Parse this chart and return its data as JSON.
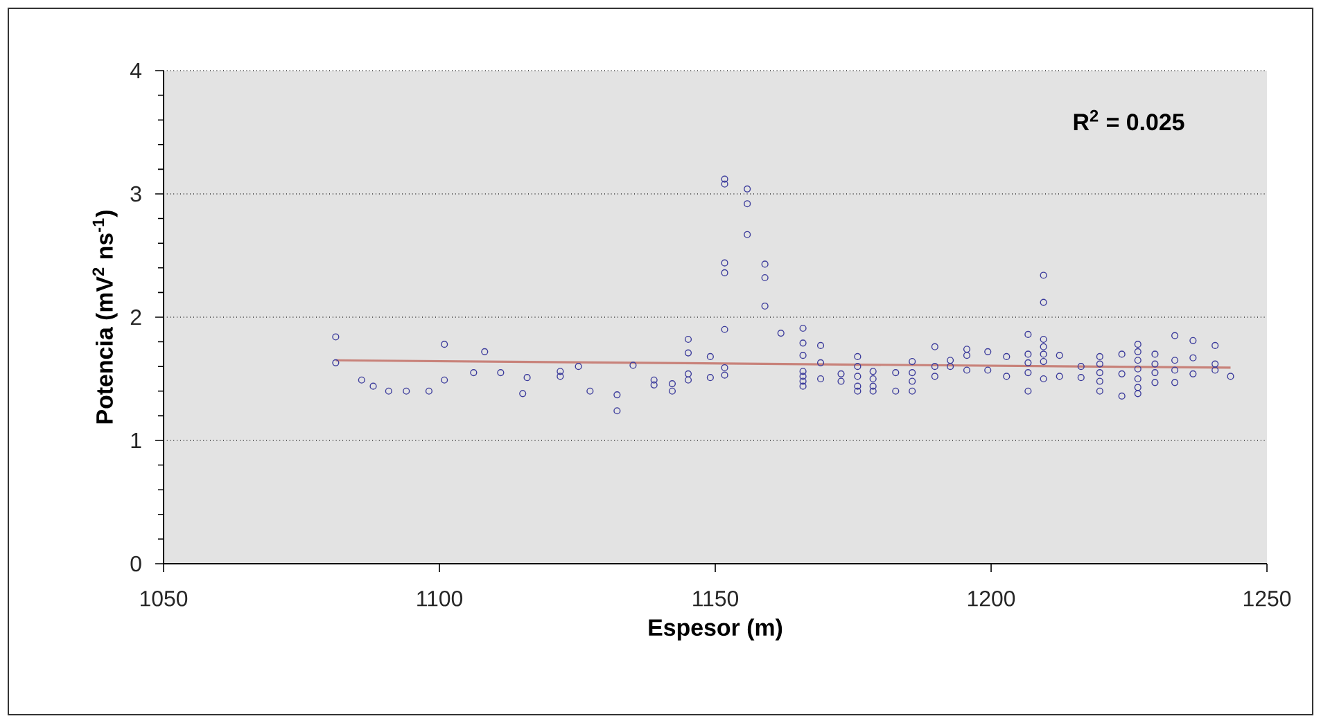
{
  "chart_data": {
    "type": "scatter",
    "xlabel": "Espesor (m)",
    "ylabel": "Potencia (mV$^{2}$ ns$^{-1}$)",
    "annotations": [
      "R$^{2}$ = 0.025"
    ],
    "xlim": [
      1050,
      1250
    ],
    "xticks": [
      1050,
      1100,
      1150,
      1200,
      1250
    ],
    "ylim": [
      0,
      4
    ],
    "yticks": [
      0,
      1,
      2,
      3,
      4
    ],
    "grid": "y",
    "series": [
      {
        "color": "#3c3c9c",
        "marker": "circle",
        "x": [
          1081.2,
          1081.2,
          1085.9,
          1088.0,
          1090.8,
          1094.0,
          1098.1,
          1100.9,
          1100.9,
          1106.2,
          1108.2,
          1111.1,
          1115.1,
          1115.9,
          1121.9,
          1121.9,
          1125.2,
          1127.3,
          1132.2,
          1132.2,
          1135.1,
          1138.9,
          1138.9,
          1142.2,
          1142.2,
          1145.1,
          1145.1,
          1145.1,
          1145.1,
          1149.1,
          1149.1,
          1151.7,
          1151.7,
          1151.7,
          1151.7,
          1151.7,
          1151.7,
          1151.7,
          1155.8,
          1155.8,
          1155.8,
          1159.0,
          1159.0,
          1159.0,
          1161.9,
          1165.9,
          1165.9,
          1165.9,
          1165.9,
          1165.9,
          1165.9,
          1165.9,
          1169.1,
          1169.1,
          1169.1,
          1172.8,
          1172.8,
          1175.8,
          1175.8,
          1175.8,
          1175.8,
          1175.8,
          1178.6,
          1178.6,
          1178.6,
          1178.6,
          1182.7,
          1182.7,
          1185.7,
          1185.7,
          1185.7,
          1185.7,
          1189.8,
          1189.8,
          1189.8,
          1192.6,
          1192.6,
          1195.6,
          1195.6,
          1195.6,
          1199.4,
          1199.4,
          1202.8,
          1202.8,
          1206.7,
          1206.7,
          1206.7,
          1206.7,
          1206.7,
          1209.5,
          1209.5,
          1209.5,
          1209.5,
          1209.5,
          1209.5,
          1209.5,
          1212.4,
          1212.4,
          1216.3,
          1216.3,
          1219.7,
          1219.7,
          1219.7,
          1219.7,
          1219.7,
          1223.7,
          1223.7,
          1223.7,
          1226.6,
          1226.6,
          1226.6,
          1226.6,
          1226.6,
          1226.6,
          1226.6,
          1229.7,
          1229.7,
          1229.7,
          1229.7,
          1233.3,
          1233.3,
          1233.3,
          1233.3,
          1236.6,
          1236.6,
          1236.6,
          1240.6,
          1240.6,
          1240.6,
          1243.4
        ],
        "values": [
          1.84,
          1.63,
          1.49,
          1.44,
          1.4,
          1.4,
          1.4,
          1.78,
          1.49,
          1.55,
          1.72,
          1.55,
          1.38,
          1.51,
          1.56,
          1.52,
          1.6,
          1.4,
          1.37,
          1.24,
          1.61,
          1.49,
          1.45,
          1.46,
          1.4,
          1.82,
          1.71,
          1.54,
          1.49,
          1.68,
          1.51,
          3.12,
          3.08,
          2.44,
          2.36,
          1.9,
          1.59,
          1.53,
          3.04,
          2.92,
          2.67,
          2.43,
          2.32,
          2.09,
          1.87,
          1.91,
          1.79,
          1.69,
          1.56,
          1.52,
          1.48,
          1.44,
          1.77,
          1.63,
          1.5,
          1.54,
          1.48,
          1.68,
          1.6,
          1.52,
          1.44,
          1.4,
          1.56,
          1.5,
          1.44,
          1.4,
          1.55,
          1.4,
          1.64,
          1.55,
          1.48,
          1.4,
          1.76,
          1.6,
          1.52,
          1.65,
          1.6,
          1.74,
          1.69,
          1.57,
          1.72,
          1.57,
          1.68,
          1.52,
          1.86,
          1.7,
          1.63,
          1.55,
          1.4,
          2.34,
          2.12,
          1.82,
          1.76,
          1.7,
          1.64,
          1.5,
          1.69,
          1.52,
          1.6,
          1.51,
          1.68,
          1.62,
          1.55,
          1.48,
          1.4,
          1.7,
          1.54,
          1.36,
          1.78,
          1.72,
          1.65,
          1.58,
          1.5,
          1.43,
          1.38,
          1.7,
          1.62,
          1.55,
          1.47,
          1.85,
          1.65,
          1.57,
          1.47,
          1.81,
          1.67,
          1.54,
          1.77,
          1.62,
          1.57,
          1.52
        ]
      },
      {
        "type": "line",
        "color": "#c8827a",
        "marker": "none",
        "x": [
          1081.2,
          1243.4
        ],
        "values": [
          1.65,
          1.59
        ]
      }
    ]
  }
}
